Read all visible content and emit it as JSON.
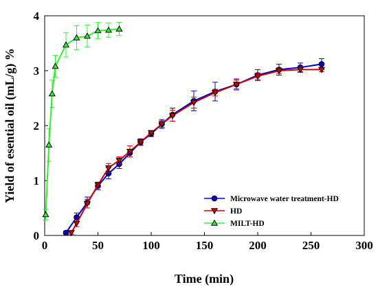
{
  "chart_data": {
    "type": "line",
    "title": "",
    "xlabel": "Time (min)",
    "ylabel": "Yield of esential oil (mL/g) %",
    "xlim": [
      0,
      300
    ],
    "ylim": [
      0,
      4
    ],
    "xticks": [
      "0",
      "50",
      "100",
      "150",
      "200",
      "250",
      "300"
    ],
    "yticks": [
      "0",
      "1",
      "2",
      "3",
      "4"
    ],
    "grid": false,
    "legend_position": "bottom-right",
    "series": [
      {
        "name": "Microwave water treatment-HD",
        "color": "#0000cc",
        "marker": "circle",
        "x": [
          20,
          30,
          40,
          50,
          60,
          70,
          80,
          90,
          100,
          110,
          120,
          140,
          160,
          180,
          200,
          220,
          240,
          260
        ],
        "y": [
          0.05,
          0.33,
          0.6,
          0.9,
          1.13,
          1.3,
          1.5,
          1.7,
          1.85,
          2.03,
          2.2,
          2.45,
          2.62,
          2.75,
          2.92,
          3.02,
          3.06,
          3.12
        ],
        "err": [
          0.03,
          0.08,
          0.1,
          0.07,
          0.1,
          0.08,
          0.07,
          0.06,
          0.05,
          0.08,
          0.12,
          0.18,
          0.17,
          0.1,
          0.1,
          0.1,
          0.08,
          0.1
        ]
      },
      {
        "name": "HD",
        "color": "#cc0000",
        "marker": "triangle-down",
        "x": [
          25,
          30,
          40,
          50,
          60,
          70,
          80,
          90,
          100,
          110,
          120,
          140,
          160,
          180,
          200,
          220,
          240,
          260
        ],
        "y": [
          0.05,
          0.22,
          0.58,
          0.92,
          1.23,
          1.37,
          1.53,
          1.7,
          1.87,
          2.03,
          2.18,
          2.42,
          2.6,
          2.75,
          2.9,
          3.0,
          3.02,
          3.02
        ],
        "err": [
          0.03,
          0.06,
          0.08,
          0.05,
          0.08,
          0.06,
          0.1,
          0.05,
          0.04,
          0.06,
          0.1,
          0.1,
          0.06,
          0.08,
          0.06,
          0.05,
          0.05,
          0.04
        ]
      },
      {
        "name": "MILT-HD",
        "color": "#33ee33",
        "marker": "triangle-up",
        "x": [
          1,
          4,
          7,
          10,
          20,
          30,
          40,
          50,
          60,
          70
        ],
        "y": [
          0.38,
          1.65,
          2.58,
          3.08,
          3.47,
          3.6,
          3.63,
          3.73,
          3.74,
          3.76
        ],
        "err": [
          0.1,
          0.3,
          0.25,
          0.2,
          0.22,
          0.22,
          0.2,
          0.15,
          0.13,
          0.12
        ]
      }
    ]
  }
}
